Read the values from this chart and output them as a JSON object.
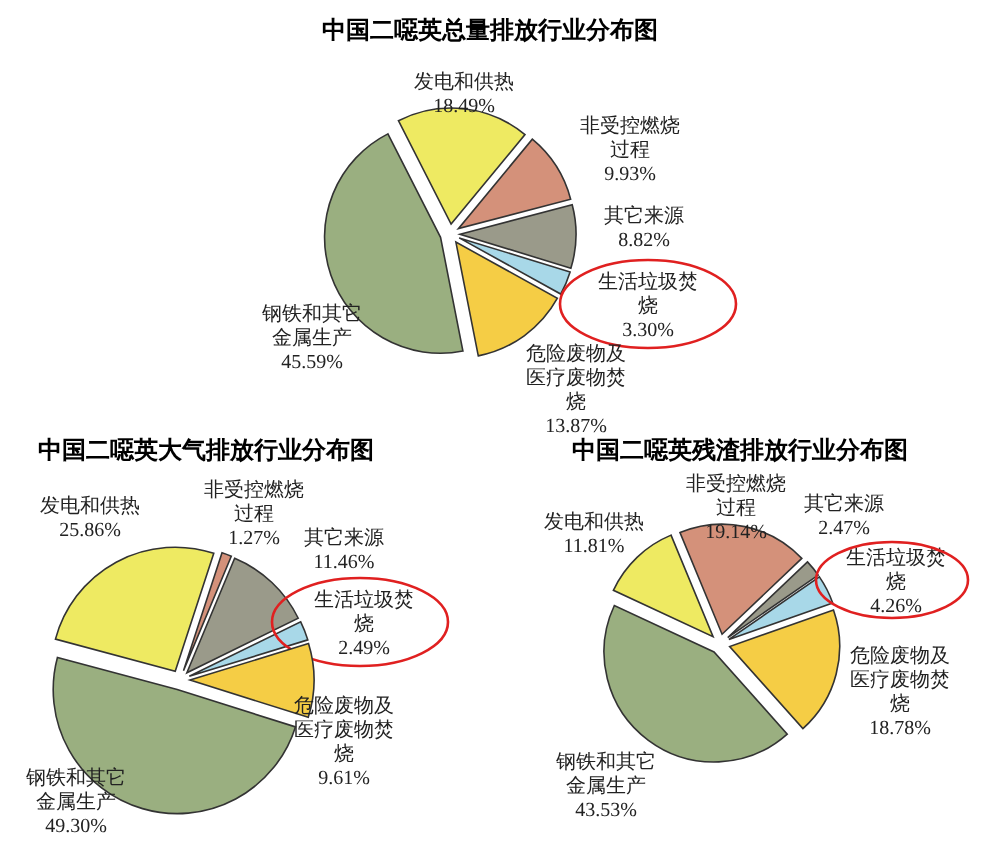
{
  "chart_data": [
    {
      "type": "pie",
      "title": "中国二噁英总量排放行业分布图",
      "categories": [
        "发电和供热",
        "非受控燃烧过程",
        "其它来源",
        "生活垃圾焚烧",
        "危险废物及医疗废物焚烧",
        "钢铁和其它金属生产"
      ],
      "values": [
        18.49,
        9.93,
        8.82,
        3.3,
        13.87,
        45.59
      ],
      "value_labels": [
        "18.49%",
        "9.93%",
        "8.82%",
        "3.30%",
        "13.87%",
        "45.59%"
      ],
      "colors": [
        "#eeea62",
        "#d4917a",
        "#9a9a8a",
        "#a8d8e8",
        "#f5cd45",
        "#9aaf80"
      ]
    },
    {
      "type": "pie",
      "title": "中国二噁英大气排放行业分布图",
      "categories": [
        "发电和供热",
        "非受控燃烧过程",
        "其它来源",
        "生活垃圾焚烧",
        "危险废物及医疗废物焚烧",
        "钢铁和其它金属生产"
      ],
      "values": [
        25.86,
        1.27,
        11.46,
        2.49,
        9.61,
        49.3
      ],
      "value_labels": [
        "25.86%",
        "1.27%",
        "11.46%",
        "2.49%",
        "9.61%",
        "49.30%"
      ],
      "colors": [
        "#eeea62",
        "#d4917a",
        "#9a9a8a",
        "#a8d8e8",
        "#f5cd45",
        "#9aaf80"
      ]
    },
    {
      "type": "pie",
      "title": "中国二噁英残渣排放行业分布图",
      "categories": [
        "发电和供热",
        "非受控燃烧过程",
        "其它来源",
        "生活垃圾焚烧",
        "危险废物及医疗废物焚烧",
        "钢铁和其它金属生产"
      ],
      "values": [
        11.81,
        19.14,
        2.47,
        4.26,
        18.78,
        43.53
      ],
      "value_labels": [
        "11.81%",
        "19.14%",
        "2.47%",
        "4.26%",
        "18.78%",
        "43.53%"
      ],
      "colors": [
        "#eeea62",
        "#d4917a",
        "#9a9a8a",
        "#a8d8e8",
        "#f5cd45",
        "#9aaf80"
      ]
    }
  ]
}
